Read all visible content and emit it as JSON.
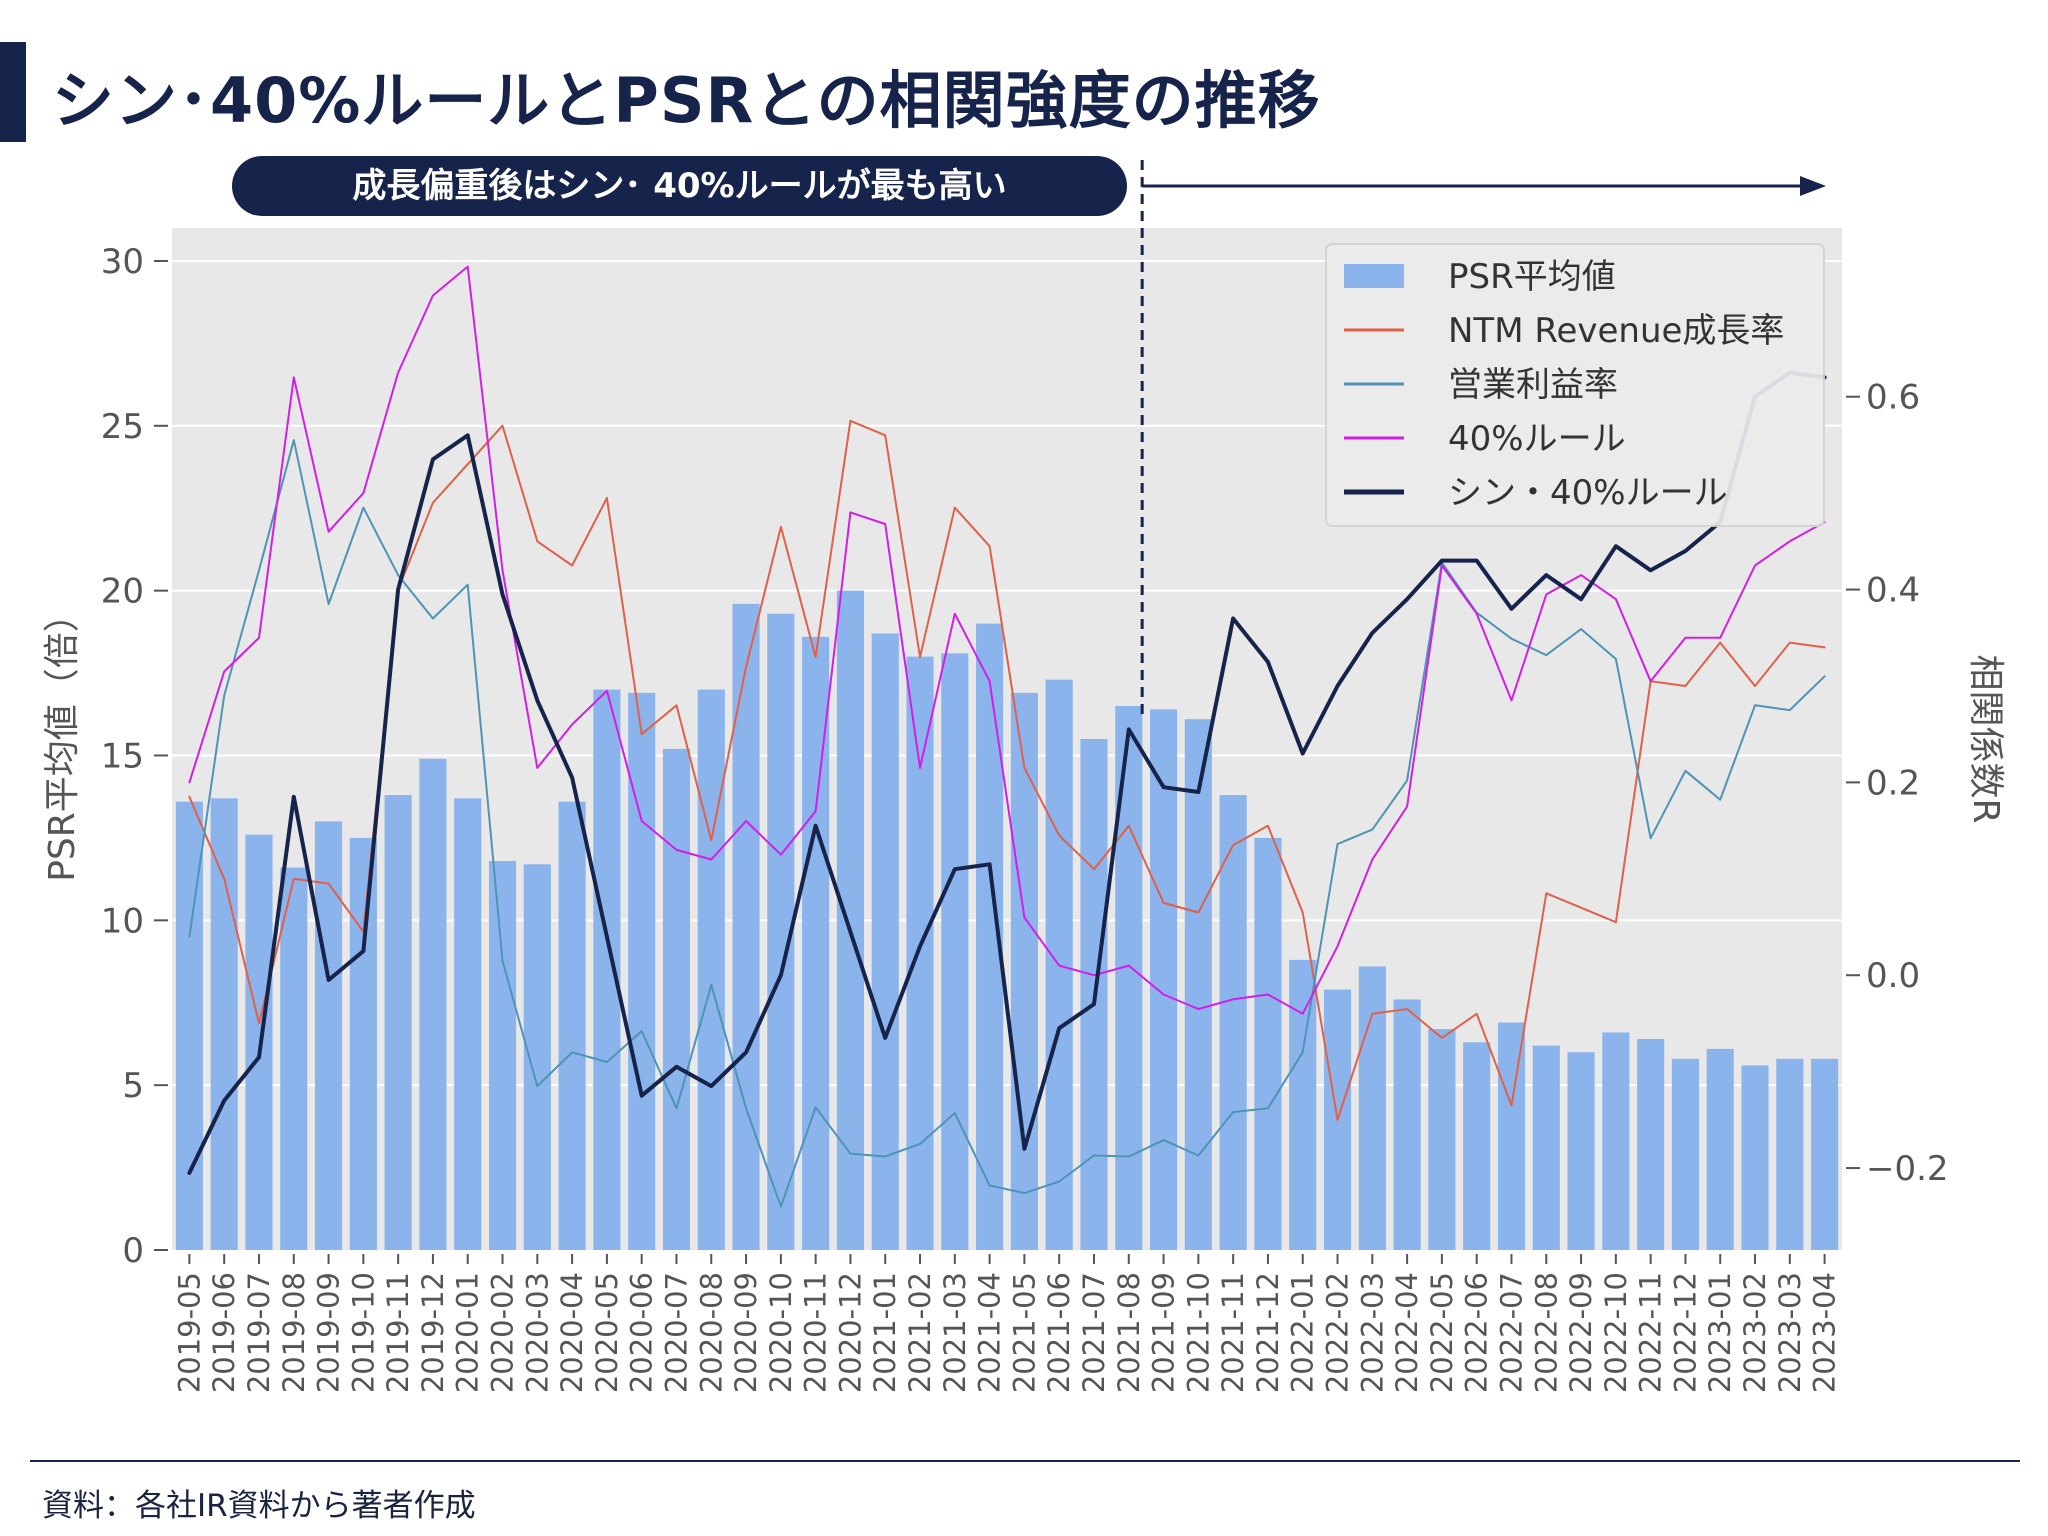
{
  "page": {
    "title": "シン･40%ルールとPSRとの相関強度の推移",
    "banner": "成長偏重後はシン･ 40%ルールが最も高い",
    "source_note": "資料：各社IR資料から著者作成"
  },
  "chart_data": {
    "type": "bar",
    "title": "",
    "categories": [
      "2019-05",
      "2019-06",
      "2019-07",
      "2019-08",
      "2019-09",
      "2019-10",
      "2019-11",
      "2019-12",
      "2020-01",
      "2020-02",
      "2020-03",
      "2020-04",
      "2020-05",
      "2020-06",
      "2020-07",
      "2020-08",
      "2020-09",
      "2020-10",
      "2020-11",
      "2020-12",
      "2021-01",
      "2021-02",
      "2021-03",
      "2021-04",
      "2021-05",
      "2021-06",
      "2021-07",
      "2021-08",
      "2021-09",
      "2021-10",
      "2021-11",
      "2021-12",
      "2022-01",
      "2022-02",
      "2022-03",
      "2022-04",
      "2022-05",
      "2022-06",
      "2022-07",
      "2022-08",
      "2022-09",
      "2022-10",
      "2022-11",
      "2022-12",
      "2023-01",
      "2023-02",
      "2023-03",
      "2023-04"
    ],
    "ylabel_left": "PSR平均値（倍）",
    "ylabel_right": "相関係数R",
    "ylim_left": [
      0,
      31
    ],
    "ylim_right": [
      -0.285,
      0.775
    ],
    "yticks_left": [
      0,
      5,
      10,
      15,
      20,
      25,
      30
    ],
    "yticks_right": [
      -0.2,
      0.0,
      0.2,
      0.4,
      0.6
    ],
    "ytick_labels_right": [
      "−0.2",
      "0.0",
      "0.2",
      "0.4",
      "0.6"
    ],
    "grid": true,
    "legend_position": "top-right",
    "colors": {
      "plot_bg": "#e8e8e8",
      "grid": "#ffffff",
      "bar": "#8cb4ec",
      "revenue": "#e0604a",
      "op_margin": "#4f93b5",
      "rule40": "#d21ee6",
      "shin40": "#16234a",
      "accent": "#16234a"
    },
    "bars": {
      "name": "PSR平均値",
      "axis": "left",
      "values": [
        13.6,
        13.7,
        12.6,
        11.6,
        13.0,
        12.5,
        13.8,
        14.9,
        13.7,
        11.8,
        11.7,
        13.6,
        17.0,
        16.9,
        15.2,
        17.0,
        19.6,
        19.3,
        18.6,
        20.0,
        18.7,
        18.0,
        18.1,
        19.0,
        16.9,
        17.3,
        15.5,
        16.5,
        16.4,
        16.1,
        13.8,
        12.5,
        8.8,
        7.9,
        8.6,
        7.6,
        6.7,
        6.3,
        6.9,
        6.2,
        6.0,
        6.6,
        6.4,
        5.8,
        6.1,
        5.6,
        5.8,
        5.8
      ]
    },
    "series": [
      {
        "name": "NTM Revenue成長率",
        "axis": "right",
        "color_key": "revenue",
        "width": 2,
        "values": [
          0.185,
          0.1,
          -0.05,
          0.1,
          0.095,
          0.045,
          0.4,
          0.49,
          0.53,
          0.57,
          0.45,
          0.425,
          0.495,
          0.25,
          0.28,
          0.14,
          0.32,
          0.465,
          0.33,
          0.575,
          0.56,
          0.33,
          0.485,
          0.445,
          0.215,
          0.145,
          0.11,
          0.155,
          0.075,
          0.065,
          0.135,
          0.155,
          0.065,
          -0.15,
          -0.04,
          -0.035,
          -0.065,
          -0.04,
          -0.135,
          0.085,
          0.07,
          0.055,
          0.305,
          0.3,
          0.345,
          0.3,
          0.345,
          0.34
        ]
      },
      {
        "name": "営業利益率",
        "axis": "right",
        "color_key": "op_margin",
        "width": 2,
        "values": [
          0.04,
          0.29,
          0.42,
          0.555,
          0.385,
          0.485,
          0.415,
          0.37,
          0.405,
          0.015,
          -0.115,
          -0.08,
          -0.09,
          -0.058,
          -0.138,
          -0.01,
          -0.138,
          -0.24,
          -0.137,
          -0.185,
          -0.188,
          -0.175,
          -0.143,
          -0.218,
          -0.226,
          -0.214,
          -0.187,
          -0.188,
          -0.171,
          -0.187,
          -0.142,
          -0.138,
          -0.08,
          0.136,
          0.151,
          0.202,
          0.428,
          0.376,
          0.349,
          0.332,
          0.359,
          0.328,
          0.142,
          0.212,
          0.182,
          0.28,
          0.275,
          0.31
        ]
      },
      {
        "name": "40%ルール",
        "axis": "right",
        "color_key": "rule40",
        "width": 2,
        "values": [
          0.2,
          0.315,
          0.35,
          0.62,
          0.46,
          0.5,
          0.625,
          0.705,
          0.735,
          0.42,
          0.215,
          0.26,
          0.295,
          0.16,
          0.13,
          0.12,
          0.16,
          0.125,
          0.17,
          0.48,
          0.468,
          0.215,
          0.375,
          0.305,
          0.06,
          0.01,
          0.0,
          0.01,
          -0.02,
          -0.035,
          -0.025,
          -0.02,
          -0.04,
          0.03,
          0.12,
          0.175,
          0.425,
          0.375,
          0.285,
          0.395,
          0.415,
          0.39,
          0.305,
          0.35,
          0.35,
          0.425,
          0.45,
          0.47
        ]
      },
      {
        "name": "シン・40%ルール",
        "axis": "right",
        "color_key": "shin40",
        "width": 4,
        "values": [
          -0.205,
          -0.13,
          -0.085,
          0.185,
          -0.005,
          0.025,
          0.4,
          0.535,
          0.56,
          0.395,
          0.285,
          0.205,
          0.04,
          -0.125,
          -0.095,
          -0.115,
          -0.08,
          0.0,
          0.155,
          0.045,
          -0.065,
          0.03,
          0.11,
          0.115,
          -0.18,
          -0.055,
          -0.03,
          0.255,
          0.195,
          0.19,
          0.37,
          0.325,
          0.23,
          0.3,
          0.355,
          0.39,
          0.43,
          0.43,
          0.38,
          0.415,
          0.39,
          0.445,
          0.42,
          0.44,
          0.47,
          0.6,
          0.625,
          0.62
        ]
      }
    ],
    "annotation": {
      "divider_category": "2021-08",
      "arrow": true
    }
  }
}
